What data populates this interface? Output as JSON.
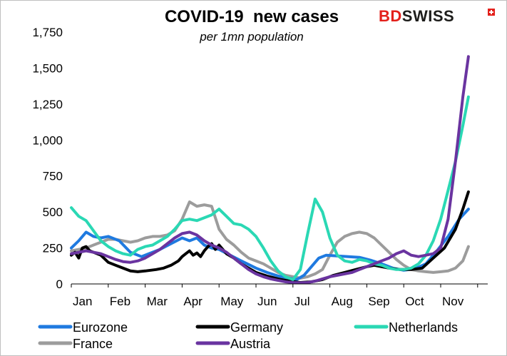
{
  "brand": {
    "part1": "BD",
    "part2": "SWISS",
    "color1": "#e3201b",
    "color2": "#1d1d1b"
  },
  "chart_data": {
    "type": "line",
    "title": "COVID-19  new cases",
    "subtitle": "per 1mn population",
    "xlabel": "",
    "ylabel": "",
    "ylim": [
      0,
      1750
    ],
    "yticks": [
      0,
      250,
      500,
      750,
      1000,
      1250,
      1500,
      1750
    ],
    "ytick_labels": [
      "0",
      "250",
      "500",
      "750",
      "1,000",
      "1,250",
      "1,500",
      "1,750"
    ],
    "x_unit": "month index (0 = start of Jan 2020)",
    "xlim": [
      0,
      11
    ],
    "xtick_labels": [
      "Jan",
      "Feb",
      "Mar",
      "Apr",
      "May",
      "Jun",
      "Jul",
      "Aug",
      "Sep",
      "Oct",
      "Nov"
    ],
    "legend_position": "bottom",
    "series": [
      {
        "name": "Eurozone",
        "color": "#1f7ae0",
        "x": [
          0,
          0.2,
          0.4,
          0.6,
          0.8,
          1.0,
          1.3,
          1.6,
          1.9,
          2.1,
          2.4,
          2.7,
          3.0,
          3.2,
          3.4,
          3.6,
          3.8,
          4.0,
          4.3,
          4.6,
          5.0,
          5.3,
          5.6,
          5.9,
          6.1,
          6.3,
          6.5,
          6.7,
          6.9,
          7.2,
          7.5,
          7.8,
          8.1,
          8.4,
          8.7,
          9.0,
          9.3,
          9.6,
          9.9,
          10.2,
          10.5,
          10.75
        ],
        "y": [
          250,
          300,
          360,
          330,
          320,
          330,
          300,
          220,
          190,
          210,
          240,
          280,
          320,
          300,
          320,
          270,
          250,
          240,
          200,
          160,
          110,
          80,
          55,
          40,
          30,
          60,
          120,
          180,
          200,
          195,
          190,
          185,
          165,
          140,
          110,
          95,
          105,
          140,
          230,
          330,
          450,
          520
        ]
      },
      {
        "name": "Germany",
        "color": "#000000",
        "x": [
          0,
          0.1,
          0.2,
          0.3,
          0.4,
          0.5,
          0.8,
          1.0,
          1.2,
          1.4,
          1.6,
          1.8,
          2.0,
          2.3,
          2.5,
          2.7,
          2.9,
          3.0,
          3.1,
          3.2,
          3.3,
          3.4,
          3.5,
          3.6,
          3.7,
          3.8,
          3.9,
          4.0,
          4.2,
          4.4,
          4.6,
          4.8,
          5.0,
          5.3,
          5.6,
          5.9,
          6.2,
          6.5,
          6.8,
          7.1,
          7.4,
          7.7,
          8.0,
          8.2,
          8.4,
          8.6,
          8.9,
          9.2,
          9.5,
          9.8,
          10.1,
          10.4,
          10.6,
          10.75
        ],
        "y": [
          200,
          220,
          180,
          250,
          260,
          230,
          200,
          150,
          130,
          110,
          90,
          85,
          90,
          100,
          110,
          130,
          160,
          190,
          210,
          230,
          200,
          215,
          190,
          230,
          260,
          280,
          240,
          270,
          210,
          180,
          140,
          110,
          80,
          55,
          35,
          20,
          10,
          15,
          30,
          60,
          80,
          100,
          120,
          130,
          120,
          110,
          100,
          100,
          110,
          180,
          250,
          380,
          520,
          640
        ]
      },
      {
        "name": "Netherlands",
        "color": "#2ad8b4",
        "x": [
          0,
          0.2,
          0.4,
          0.6,
          0.8,
          1.0,
          1.2,
          1.4,
          1.6,
          1.8,
          2.0,
          2.2,
          2.4,
          2.6,
          2.8,
          3.0,
          3.2,
          3.4,
          3.6,
          3.8,
          4.0,
          4.2,
          4.4,
          4.6,
          4.8,
          5.0,
          5.2,
          5.4,
          5.6,
          5.8,
          6.0,
          6.2,
          6.4,
          6.6,
          6.8,
          7.0,
          7.2,
          7.4,
          7.6,
          7.8,
          8.0,
          8.2,
          8.4,
          8.6,
          8.8,
          9.0,
          9.2,
          9.4,
          9.6,
          9.8,
          10.0,
          10.2,
          10.4,
          10.6,
          10.75
        ],
        "y": [
          530,
          470,
          440,
          370,
          300,
          260,
          230,
          210,
          200,
          240,
          260,
          270,
          300,
          330,
          380,
          440,
          450,
          440,
          460,
          480,
          520,
          470,
          420,
          410,
          380,
          330,
          250,
          160,
          90,
          50,
          30,
          100,
          350,
          590,
          500,
          320,
          200,
          160,
          150,
          170,
          160,
          140,
          130,
          110,
          100,
          100,
          110,
          140,
          200,
          300,
          450,
          650,
          850,
          1100,
          1300
        ]
      },
      {
        "name": "France",
        "color": "#9c9c9c",
        "x": [
          0,
          0.2,
          0.4,
          0.6,
          0.8,
          1.0,
          1.2,
          1.4,
          1.6,
          1.8,
          2.0,
          2.2,
          2.4,
          2.6,
          2.8,
          3.0,
          3.2,
          3.4,
          3.6,
          3.8,
          4.0,
          4.2,
          4.4,
          4.6,
          4.8,
          5.0,
          5.2,
          5.4,
          5.6,
          5.8,
          6.0,
          6.2,
          6.4,
          6.6,
          6.8,
          7.0,
          7.2,
          7.4,
          7.6,
          7.8,
          8.0,
          8.2,
          8.4,
          8.6,
          8.8,
          9.0,
          9.2,
          9.4,
          9.6,
          9.8,
          10.0,
          10.2,
          10.4,
          10.6,
          10.75
        ],
        "y": [
          230,
          240,
          250,
          270,
          290,
          310,
          310,
          300,
          290,
          300,
          320,
          330,
          330,
          340,
          370,
          450,
          570,
          540,
          550,
          540,
          380,
          310,
          270,
          220,
          180,
          160,
          140,
          110,
          80,
          60,
          50,
          40,
          50,
          70,
          100,
          200,
          290,
          330,
          350,
          360,
          350,
          320,
          270,
          220,
          170,
          130,
          100,
          90,
          85,
          80,
          85,
          90,
          110,
          160,
          260
        ]
      },
      {
        "name": "Austria",
        "color": "#6a34a0",
        "x": [
          0,
          0.2,
          0.4,
          0.6,
          0.8,
          1.0,
          1.2,
          1.4,
          1.6,
          1.8,
          2.0,
          2.2,
          2.4,
          2.6,
          2.8,
          3.0,
          3.2,
          3.4,
          3.6,
          3.8,
          4.0,
          4.2,
          4.4,
          4.6,
          4.8,
          5.0,
          5.2,
          5.4,
          5.6,
          5.8,
          6.0,
          6.2,
          6.4,
          6.6,
          6.8,
          7.0,
          7.2,
          7.4,
          7.6,
          7.8,
          8.0,
          8.2,
          8.4,
          8.6,
          8.8,
          9.0,
          9.2,
          9.4,
          9.6,
          9.8,
          10.0,
          10.2,
          10.4,
          10.6,
          10.75
        ],
        "y": [
          210,
          220,
          230,
          220,
          210,
          190,
          170,
          155,
          150,
          160,
          180,
          210,
          240,
          280,
          320,
          350,
          360,
          340,
          300,
          270,
          250,
          220,
          180,
          140,
          100,
          70,
          50,
          35,
          25,
          15,
          10,
          8,
          10,
          20,
          35,
          50,
          60,
          70,
          80,
          100,
          120,
          140,
          160,
          180,
          210,
          230,
          200,
          190,
          200,
          210,
          250,
          450,
          850,
          1300,
          1580
        ]
      }
    ]
  }
}
